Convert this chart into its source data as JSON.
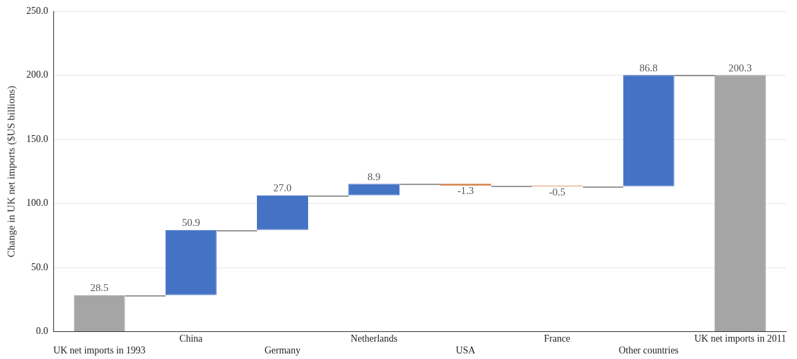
{
  "chart_data": {
    "type": "bar",
    "ylabel": "Change in UK net imports ($US billions)",
    "categories": [
      "UK net imports in 1993",
      "China",
      "Germany",
      "Netherlands",
      "USA",
      "France",
      "Other countries",
      "UK net imports in 2011"
    ],
    "values": [
      28.5,
      50.9,
      27.0,
      8.9,
      -1.3,
      -0.5,
      86.8,
      200.3
    ],
    "value_labels": [
      "28.5",
      "50.9",
      "27.0",
      "8.9",
      "-1.3",
      "-0.5",
      "86.8",
      "200.3"
    ],
    "base": [
      0,
      28.5,
      79.4,
      106.4,
      115.3,
      114.0,
      113.5,
      0
    ],
    "colors": [
      "#a5a5a5",
      "#4472c4",
      "#4472c4",
      "#4472c4",
      "#c55a11",
      "#c55a11",
      "#4472c4",
      "#a5a5a5"
    ],
    "ylim": [
      0,
      250
    ],
    "yticks": [
      {
        "value": 0,
        "label": "0.0"
      },
      {
        "value": 50,
        "label": "50.0"
      },
      {
        "value": 100,
        "label": "100.0"
      },
      {
        "value": 150,
        "label": "150.0"
      },
      {
        "value": 200,
        "label": "200.0"
      },
      {
        "value": 250,
        "label": "250.0"
      }
    ],
    "grid": "y"
  }
}
